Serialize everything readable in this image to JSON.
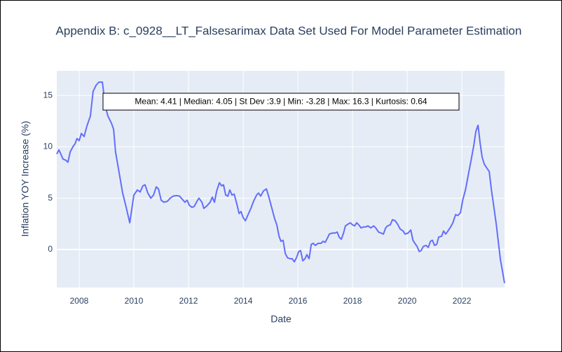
{
  "chart_data": {
    "type": "line",
    "title": "Appendix B: c_0928__LT_Falsesarimax Data Set Used For Model Parameter Estimation",
    "x_label": "Date",
    "y_label": "Inflation YOY Increase (%)",
    "annotation": "Mean: 4.41 | Median: 4.05 | St Dev :3.9 | Min: -3.28 | Max: 16.3 | Kurtosis: 0.64",
    "color": "#636efa",
    "grid": true,
    "xlim": [
      2007.18,
      2023.56
    ],
    "ylim": [
      -3.7,
      17.4
    ],
    "xticks": [
      2008,
      2010,
      2012,
      2014,
      2016,
      2018,
      2020,
      2022
    ],
    "yticks": [
      0,
      5,
      10,
      15
    ],
    "x": [
      2007.18,
      2007.26,
      2007.41,
      2007.51,
      2007.59,
      2007.67,
      2007.77,
      2007.85,
      2007.92,
      2008.0,
      2008.08,
      2008.18,
      2008.28,
      2008.41,
      2008.51,
      2008.62,
      2008.72,
      2008.85,
      2008.95,
      2009.05,
      2009.18,
      2009.26,
      2009.33,
      2009.46,
      2009.59,
      2009.72,
      2009.85,
      2010.0,
      2010.13,
      2010.23,
      2010.33,
      2010.41,
      2010.51,
      2010.62,
      2010.72,
      2010.82,
      2010.9,
      2011.0,
      2011.1,
      2011.23,
      2011.33,
      2011.44,
      2011.56,
      2011.67,
      2011.77,
      2011.87,
      2011.95,
      2012.03,
      2012.13,
      2012.21,
      2012.31,
      2012.38,
      2012.49,
      2012.56,
      2012.69,
      2012.79,
      2012.87,
      2012.95,
      2013.03,
      2013.13,
      2013.21,
      2013.28,
      2013.36,
      2013.44,
      2013.51,
      2013.59,
      2013.67,
      2013.77,
      2013.85,
      2013.92,
      2014.0,
      2014.08,
      2014.18,
      2014.28,
      2014.38,
      2014.49,
      2014.56,
      2014.64,
      2014.74,
      2014.85,
      2014.95,
      2015.05,
      2015.15,
      2015.23,
      2015.31,
      2015.38,
      2015.46,
      2015.54,
      2015.62,
      2015.72,
      2015.79,
      2015.87,
      2015.95,
      2016.03,
      2016.1,
      2016.18,
      2016.26,
      2016.33,
      2016.41,
      2016.49,
      2016.56,
      2016.64,
      2016.74,
      2016.85,
      2016.92,
      2017.0,
      2017.08,
      2017.15,
      2017.26,
      2017.36,
      2017.44,
      2017.51,
      2017.59,
      2017.67,
      2017.74,
      2017.85,
      2017.92,
      2018.0,
      2018.08,
      2018.15,
      2018.23,
      2018.31,
      2018.41,
      2018.49,
      2018.56,
      2018.67,
      2018.77,
      2018.85,
      2018.95,
      2019.05,
      2019.13,
      2019.21,
      2019.28,
      2019.38,
      2019.46,
      2019.56,
      2019.64,
      2019.74,
      2019.85,
      2019.92,
      2020.03,
      2020.13,
      2020.21,
      2020.28,
      2020.36,
      2020.44,
      2020.51,
      2020.59,
      2020.69,
      2020.77,
      2020.85,
      2020.92,
      2021.0,
      2021.08,
      2021.15,
      2021.26,
      2021.33,
      2021.41,
      2021.49,
      2021.59,
      2021.67,
      2021.77,
      2021.85,
      2021.95,
      2022.03,
      2022.13,
      2022.23,
      2022.33,
      2022.44,
      2022.51,
      2022.59,
      2022.67,
      2022.74,
      2022.82,
      2022.92,
      2023.0,
      2023.08,
      2023.15,
      2023.26,
      2023.33,
      2023.41,
      2023.49,
      2023.56
    ],
    "values": [
      9.3,
      9.7,
      8.8,
      8.7,
      8.5,
      9.5,
      10.0,
      10.3,
      10.8,
      10.6,
      11.3,
      11.0,
      12.0,
      13.0,
      15.4,
      16.0,
      16.3,
      16.3,
      14.0,
      13.0,
      12.3,
      11.7,
      9.5,
      7.5,
      5.5,
      4.1,
      2.6,
      5.3,
      5.8,
      5.6,
      6.2,
      6.3,
      5.5,
      5.0,
      5.3,
      6.1,
      5.9,
      4.8,
      4.6,
      4.7,
      5.0,
      5.2,
      5.25,
      5.2,
      4.9,
      4.6,
      4.8,
      4.3,
      4.1,
      4.2,
      4.7,
      5.0,
      4.6,
      4.0,
      4.3,
      4.6,
      5.1,
      4.6,
      5.7,
      6.5,
      6.2,
      6.3,
      5.3,
      5.2,
      5.8,
      5.3,
      5.4,
      4.4,
      3.5,
      3.7,
      3.1,
      2.8,
      3.4,
      4.0,
      4.7,
      5.3,
      5.5,
      5.2,
      5.7,
      5.9,
      5.0,
      4.0,
      3.0,
      2.4,
      1.3,
      0.8,
      0.9,
      -0.4,
      -0.8,
      -0.9,
      -0.9,
      -1.2,
      -0.8,
      -0.2,
      -0.1,
      -1.1,
      -0.9,
      -0.5,
      -0.9,
      0.5,
      0.6,
      0.4,
      0.6,
      0.6,
      0.8,
      0.7,
      1.1,
      1.5,
      1.6,
      1.6,
      1.7,
      1.2,
      1.0,
      1.6,
      2.3,
      2.5,
      2.6,
      2.4,
      2.3,
      2.6,
      2.4,
      2.1,
      2.2,
      2.2,
      2.3,
      2.1,
      2.3,
      2.1,
      1.7,
      1.6,
      1.5,
      2.1,
      2.3,
      2.4,
      2.9,
      2.8,
      2.5,
      2.0,
      1.8,
      1.5,
      1.6,
      1.9,
      0.9,
      0.6,
      0.3,
      -0.2,
      -0.1,
      0.3,
      0.4,
      0.2,
      0.8,
      0.9,
      0.4,
      0.5,
      1.2,
      1.3,
      1.8,
      1.5,
      1.8,
      2.2,
      2.6,
      3.4,
      3.3,
      3.6,
      4.8,
      5.8,
      7.2,
      8.6,
      10.2,
      11.5,
      12.1,
      10.3,
      9.0,
      8.3,
      7.9,
      7.6,
      5.8,
      4.5,
      2.4,
      0.8,
      -1.0,
      -2.2,
      -3.28
    ]
  }
}
